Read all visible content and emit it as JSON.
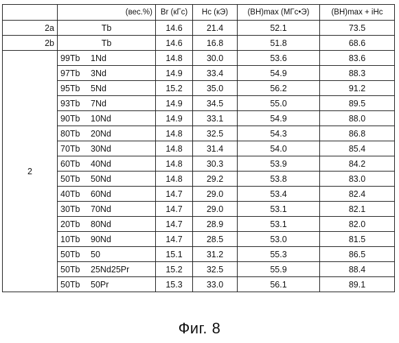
{
  "table": {
    "headers": {
      "composition": "(вес.%)",
      "br": "Br (кГс)",
      "hc": "Hc (кЭ)",
      "bhmax": "(BH)max (МГс•Э)",
      "sum": "(BH)max + iHc"
    },
    "single_rows": [
      {
        "label": "2a",
        "comp": "Tb",
        "br": "14.6",
        "hc": "21.4",
        "bh": "52.1",
        "sum": "73.5"
      },
      {
        "label": "2b",
        "comp": "Tb",
        "br": "14.6",
        "hc": "16.8",
        "bh": "51.8",
        "sum": "68.6"
      }
    ],
    "group_label": "2",
    "group_rows": [
      {
        "a": "99Tb",
        "b": "1Nd",
        "br": "14.8",
        "hc": "30.0",
        "bh": "53.6",
        "sum": "83.6"
      },
      {
        "a": "97Tb",
        "b": "3Nd",
        "br": "14.9",
        "hc": "33.4",
        "bh": "54.9",
        "sum": "88.3"
      },
      {
        "a": "95Tb",
        "b": "5Nd",
        "br": "15.2",
        "hc": "35.0",
        "bh": "56.2",
        "sum": "91.2"
      },
      {
        "a": "93Tb",
        "b": "7Nd",
        "br": "14.9",
        "hc": "34.5",
        "bh": "55.0",
        "sum": "89.5"
      },
      {
        "a": "90Tb",
        "b": "10Nd",
        "br": "14.9",
        "hc": "33.1",
        "bh": "54.9",
        "sum": "88.0"
      },
      {
        "a": "80Tb",
        "b": "20Nd",
        "br": "14.8",
        "hc": "32.5",
        "bh": "54.3",
        "sum": "86.8"
      },
      {
        "a": "70Tb",
        "b": "30Nd",
        "br": "14.8",
        "hc": "31.4",
        "bh": "54.0",
        "sum": "85.4"
      },
      {
        "a": "60Tb",
        "b": "40Nd",
        "br": "14.8",
        "hc": "30.3",
        "bh": "53.9",
        "sum": "84.2"
      },
      {
        "a": "50Tb",
        "b": "50Nd",
        "br": "14.8",
        "hc": "29.2",
        "bh": "53.8",
        "sum": "83.0"
      },
      {
        "a": "40Tb",
        "b": "60Nd",
        "br": "14.7",
        "hc": "29.0",
        "bh": "53.4",
        "sum": "82.4"
      },
      {
        "a": "30Tb",
        "b": "70Nd",
        "br": "14.7",
        "hc": "29.0",
        "bh": "53.1",
        "sum": "82.1"
      },
      {
        "a": "20Tb",
        "b": "80Nd",
        "br": "14.7",
        "hc": "28.9",
        "bh": "53.1",
        "sum": "82.0"
      },
      {
        "a": "10Tb",
        "b": "90Nd",
        "br": "14.7",
        "hc": "28.5",
        "bh": "53.0",
        "sum": "81.5"
      },
      {
        "a": "50Tb",
        "b": "50",
        "br": "15.1",
        "hc": "31.2",
        "bh": "55.3",
        "sum": "86.5"
      },
      {
        "a": "50Tb",
        "b": "25Nd25Pr",
        "br": "15.2",
        "hc": "32.5",
        "bh": "55.9",
        "sum": "88.4"
      },
      {
        "a": "50Tb",
        "b": "50Pr",
        "br": "15.3",
        "hc": "33.0",
        "bh": "56.1",
        "sum": "89.1"
      }
    ]
  },
  "caption": "Фиг. 8"
}
